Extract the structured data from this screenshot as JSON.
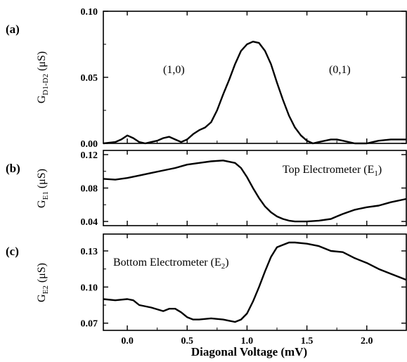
{
  "chart_data": [
    {
      "type": "line",
      "panel_label": "(a)",
      "ylabel": {
        "main": "G",
        "sub": "D1-D2",
        "unit": "(μS)"
      },
      "ylim": [
        0,
        0.1
      ],
      "yticks": [
        0.0,
        0.05,
        0.1
      ],
      "ytick_labels": [
        "0.00",
        "0.05",
        "0.10"
      ],
      "xlim": [
        -0.2,
        2.33
      ],
      "annotations": [
        {
          "text": "(1,0)",
          "x": 0.35,
          "y": 0.058
        },
        {
          "text": "(0,1)",
          "x": 1.83,
          "y": 0.058
        }
      ],
      "series": [
        {
          "x": [
            -0.2,
            -0.1,
            -0.05,
            0.0,
            0.05,
            0.1,
            0.15,
            0.2,
            0.25,
            0.3,
            0.35,
            0.4,
            0.45,
            0.5,
            0.55,
            0.6,
            0.65,
            0.7,
            0.75,
            0.8,
            0.85,
            0.9,
            0.95,
            1.0,
            1.05,
            1.1,
            1.15,
            1.2,
            1.25,
            1.3,
            1.35,
            1.4,
            1.45,
            1.5,
            1.55,
            1.6,
            1.7,
            1.75,
            1.8,
            1.9,
            2.0,
            2.05,
            2.1,
            2.2,
            2.33
          ],
          "values": [
            0.0,
            0.001,
            0.003,
            0.006,
            0.004,
            0.001,
            0.0,
            0.001,
            0.002,
            0.004,
            0.005,
            0.003,
            0.001,
            0.003,
            0.007,
            0.01,
            0.012,
            0.016,
            0.025,
            0.037,
            0.048,
            0.06,
            0.07,
            0.075,
            0.077,
            0.076,
            0.07,
            0.06,
            0.046,
            0.033,
            0.021,
            0.012,
            0.006,
            0.002,
            0.0,
            0.001,
            0.003,
            0.003,
            0.002,
            0.0,
            0.0,
            0.001,
            0.002,
            0.003,
            0.003
          ]
        }
      ]
    },
    {
      "type": "line",
      "panel_label": "(b)",
      "ylabel": {
        "main": "G",
        "sub": "E1",
        "unit": "(μS)"
      },
      "ylim": [
        0.035,
        0.125
      ],
      "yticks": [
        0.04,
        0.08,
        0.12
      ],
      "ytick_labels": [
        "0.04",
        "0.08",
        "0.12"
      ],
      "xlim": [
        -0.2,
        2.33
      ],
      "annotations": [
        {
          "text": "Top Electrometer (E",
          "sub": "1",
          "tail": ")"
        }
      ],
      "series": [
        {
          "x": [
            -0.2,
            -0.1,
            0.0,
            0.1,
            0.2,
            0.3,
            0.4,
            0.5,
            0.6,
            0.7,
            0.8,
            0.9,
            0.95,
            1.0,
            1.05,
            1.1,
            1.15,
            1.2,
            1.25,
            1.3,
            1.35,
            1.4,
            1.5,
            1.6,
            1.7,
            1.75,
            1.8,
            1.9,
            2.0,
            2.1,
            2.2,
            2.33
          ],
          "values": [
            0.091,
            0.09,
            0.092,
            0.095,
            0.098,
            0.101,
            0.104,
            0.108,
            0.11,
            0.112,
            0.113,
            0.11,
            0.104,
            0.093,
            0.08,
            0.068,
            0.058,
            0.051,
            0.046,
            0.043,
            0.041,
            0.04,
            0.04,
            0.041,
            0.043,
            0.046,
            0.049,
            0.054,
            0.057,
            0.059,
            0.063,
            0.067
          ]
        }
      ]
    },
    {
      "type": "line",
      "panel_label": "(c)",
      "ylabel": {
        "main": "G",
        "sub": "E2",
        "unit": "(μS)"
      },
      "ylim": [
        0.064,
        0.144
      ],
      "yticks": [
        0.07,
        0.1,
        0.13
      ],
      "ytick_labels": [
        "0.07",
        "0.10",
        "0.13"
      ],
      "xlim": [
        -0.2,
        2.33
      ],
      "xticks": [
        0.0,
        0.5,
        1.0,
        1.5,
        2.0
      ],
      "xtick_labels": [
        "0.0",
        "0.5",
        "1.0",
        "1.5",
        "2.0"
      ],
      "xlabel": "Diagonal Voltage (mV)",
      "annotations": [
        {
          "text": "Bottom Electrometer (E",
          "sub": "2",
          "tail": ")"
        }
      ],
      "series": [
        {
          "x": [
            -0.2,
            -0.1,
            0.0,
            0.05,
            0.1,
            0.2,
            0.3,
            0.35,
            0.4,
            0.45,
            0.5,
            0.55,
            0.6,
            0.7,
            0.8,
            0.85,
            0.9,
            0.95,
            1.0,
            1.05,
            1.1,
            1.15,
            1.2,
            1.25,
            1.3,
            1.35,
            1.4,
            1.5,
            1.6,
            1.7,
            1.8,
            1.9,
            2.0,
            2.1,
            2.2,
            2.33
          ],
          "values": [
            0.09,
            0.089,
            0.09,
            0.089,
            0.085,
            0.083,
            0.08,
            0.082,
            0.082,
            0.079,
            0.075,
            0.073,
            0.073,
            0.074,
            0.073,
            0.072,
            0.071,
            0.073,
            0.078,
            0.088,
            0.1,
            0.113,
            0.125,
            0.133,
            0.135,
            0.137,
            0.137,
            0.136,
            0.134,
            0.13,
            0.129,
            0.124,
            0.12,
            0.115,
            0.111,
            0.106
          ]
        }
      ]
    }
  ]
}
